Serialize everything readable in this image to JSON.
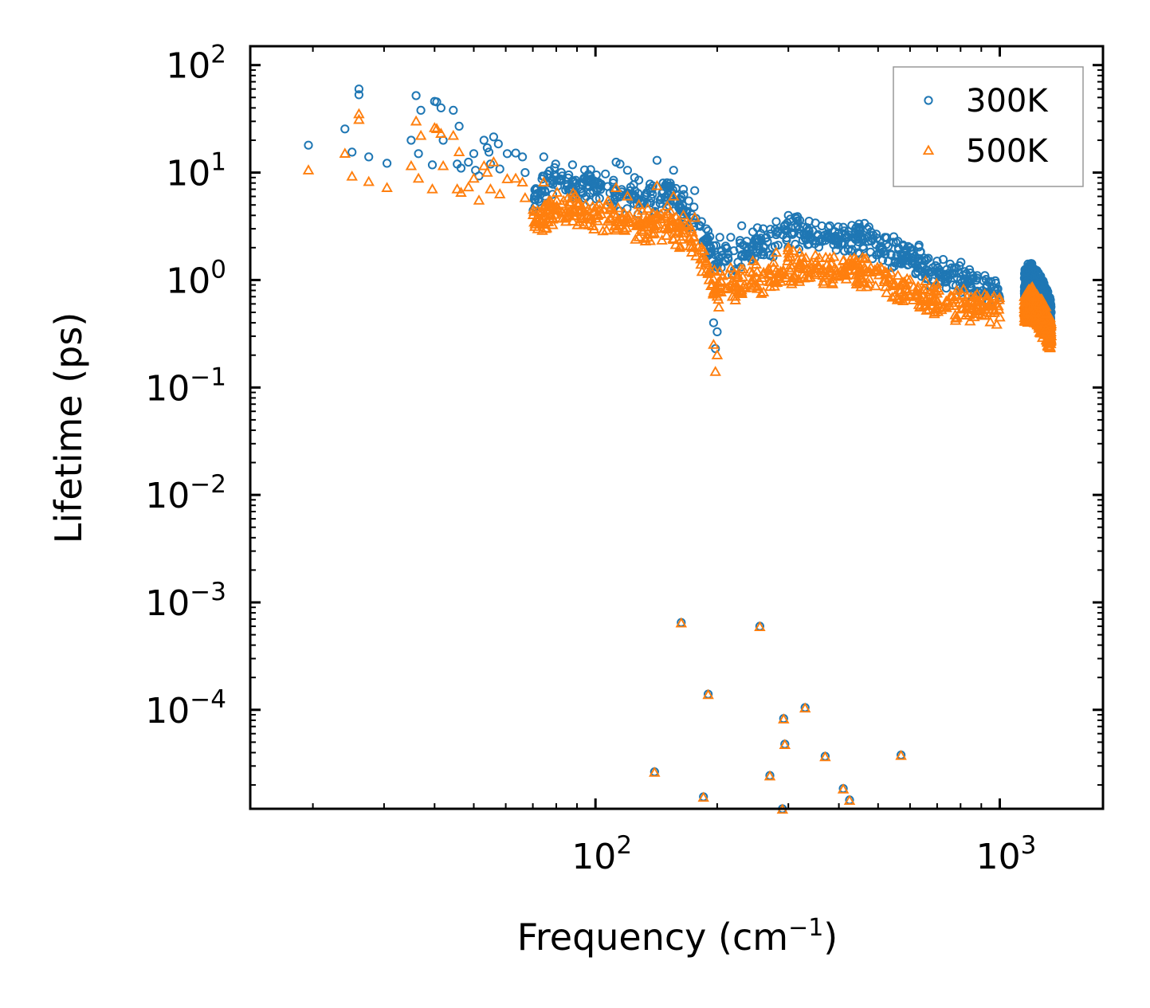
{
  "chart_data": {
    "type": "scatter",
    "title": "",
    "xlabel": "Frequency (cm",
    "xlabel_exponent": "−1",
    "xlabel_suffix": ")",
    "ylabel": "Lifetime (ps)",
    "xscale": "log",
    "yscale": "log",
    "xlim": [
      14,
      1800
    ],
    "ylim": [
      1.2e-05,
      150
    ],
    "legend_placement": "top-right",
    "x_ticks": [
      {
        "value": 100,
        "base": "10",
        "exp": "2"
      },
      {
        "value": 1000,
        "base": "10",
        "exp": "3"
      }
    ],
    "y_ticks": [
      {
        "value": 100,
        "base": "10",
        "exp": "2"
      },
      {
        "value": 10,
        "base": "10",
        "exp": "1"
      },
      {
        "value": 1,
        "base": "10",
        "exp": "0"
      },
      {
        "value": 0.1,
        "base": "10",
        "exp": "−1"
      },
      {
        "value": 0.01,
        "base": "10",
        "exp": "−2"
      },
      {
        "value": 0.001,
        "base": "10",
        "exp": "−3"
      },
      {
        "value": 0.0001,
        "base": "10",
        "exp": "−4"
      }
    ],
    "series": [
      {
        "name": "300K",
        "marker": "circle",
        "color": "#1f77b4",
        "points": [
          [
            19.5,
            18
          ],
          [
            24,
            25.5
          ],
          [
            25,
            15.5
          ],
          [
            26,
            60
          ],
          [
            26,
            53
          ],
          [
            27.5,
            14
          ],
          [
            30.5,
            12.2
          ],
          [
            35,
            20
          ],
          [
            36,
            52
          ],
          [
            36.5,
            15
          ],
          [
            37,
            38
          ],
          [
            39.5,
            11.8
          ],
          [
            40,
            46
          ],
          [
            40.5,
            45.5
          ],
          [
            41.5,
            40
          ],
          [
            42,
            20
          ],
          [
            44.5,
            38
          ],
          [
            45.5,
            12
          ],
          [
            46,
            27
          ],
          [
            46.5,
            11
          ],
          [
            48.5,
            12.5
          ],
          [
            50,
            15
          ],
          [
            50.5,
            10.5
          ],
          [
            51.5,
            9.3
          ],
          [
            53,
            20
          ],
          [
            54,
            17
          ],
          [
            54.5,
            15.5
          ],
          [
            55,
            12
          ],
          [
            56,
            21.5
          ],
          [
            57.5,
            18.5
          ],
          [
            58,
            10.8
          ],
          [
            60.5,
            15
          ],
          [
            63.5,
            15.2
          ],
          [
            66,
            14
          ],
          [
            67,
            10
          ],
          [
            74.5,
            14
          ],
          [
            112.5,
            12.5
          ],
          [
            115,
            12
          ],
          [
            120,
            10.5
          ],
          [
            125,
            9
          ],
          [
            128,
            8.5
          ],
          [
            142,
            13
          ],
          [
            147,
            8
          ],
          [
            156,
            10.5
          ],
          [
            165,
            7
          ],
          [
            176,
            6.8
          ],
          [
            183,
            3.5
          ],
          [
            188,
            3
          ],
          [
            193,
            2
          ],
          [
            196,
            0.4
          ],
          [
            198,
            0.23
          ],
          [
            200,
            0.33
          ],
          [
            203,
            2.5
          ],
          [
            216,
            2.5
          ],
          [
            230,
            3.2
          ],
          [
            245,
            2.8
          ],
          [
            260,
            3
          ],
          [
            280,
            3.5
          ],
          [
            300,
            4
          ],
          [
            320,
            3.6
          ],
          [
            350,
            3.4
          ],
          [
            380,
            3.2
          ],
          [
            410,
            3.1
          ],
          [
            440,
            3
          ],
          [
            480,
            2.8
          ],
          [
            520,
            2.5
          ],
          [
            560,
            2.3
          ],
          [
            600,
            2
          ],
          [
            650,
            1.6
          ],
          [
            700,
            1.5
          ],
          [
            760,
            1.3
          ],
          [
            820,
            1.2
          ],
          [
            880,
            1.1
          ],
          [
            930,
            0.9
          ],
          [
            1000,
            0.65
          ],
          [
            1160,
            1.2
          ],
          [
            1200,
            1.25
          ],
          [
            1250,
            1.1
          ],
          [
            1300,
            0.6
          ],
          [
            1340,
            0.5
          ]
        ]
      },
      {
        "name": "500K",
        "marker": "triangle",
        "color": "#ff7f0e",
        "points": [
          [
            19.5,
            10.5
          ],
          [
            24,
            15
          ],
          [
            25,
            9.2
          ],
          [
            26,
            35
          ],
          [
            26,
            31
          ],
          [
            27.5,
            8.2
          ],
          [
            30.5,
            7.2
          ],
          [
            35,
            11.5
          ],
          [
            36,
            30
          ],
          [
            36.5,
            8.8
          ],
          [
            37,
            22
          ],
          [
            39.5,
            7
          ],
          [
            40,
            26
          ],
          [
            40.5,
            25.5
          ],
          [
            41.5,
            23
          ],
          [
            42,
            11.5
          ],
          [
            44.5,
            22
          ],
          [
            45.5,
            7
          ],
          [
            46,
            15.5
          ],
          [
            46.5,
            6.5
          ],
          [
            48.5,
            7.3
          ],
          [
            50,
            8.8
          ],
          [
            51.5,
            5.5
          ],
          [
            53,
            11.5
          ],
          [
            54,
            10
          ],
          [
            55,
            7
          ],
          [
            56,
            12.5
          ],
          [
            58,
            6.3
          ],
          [
            60.5,
            8.7
          ],
          [
            63.5,
            8.8
          ],
          [
            66,
            8.1
          ],
          [
            67,
            5.8
          ],
          [
            74.5,
            8.1
          ],
          [
            112.5,
            7.2
          ],
          [
            120,
            6
          ],
          [
            128,
            5
          ],
          [
            142,
            7.5
          ],
          [
            156,
            6
          ],
          [
            165,
            4
          ],
          [
            176,
            3.8
          ],
          [
            183,
            2
          ],
          [
            188,
            1.5
          ],
          [
            193,
            1.2
          ],
          [
            196,
            0.25
          ],
          [
            198,
            0.14
          ],
          [
            200,
            0.2
          ],
          [
            203,
            1.2
          ],
          [
            216,
            1.3
          ],
          [
            245,
            1.5
          ],
          [
            280,
            1.8
          ],
          [
            300,
            2
          ],
          [
            320,
            1.8
          ],
          [
            350,
            1.7
          ],
          [
            380,
            1.6
          ],
          [
            410,
            1.5
          ],
          [
            440,
            1.5
          ],
          [
            480,
            1.3
          ],
          [
            520,
            1.2
          ],
          [
            560,
            1.1
          ],
          [
            600,
            1
          ],
          [
            650,
            0.8
          ],
          [
            700,
            0.75
          ],
          [
            760,
            0.7
          ],
          [
            820,
            0.6
          ],
          [
            880,
            0.55
          ],
          [
            930,
            0.5
          ],
          [
            1000,
            0.45
          ],
          [
            1160,
            0.65
          ],
          [
            1200,
            0.7
          ],
          [
            1250,
            0.6
          ],
          [
            1300,
            0.35
          ],
          [
            1340,
            0.3
          ]
        ]
      }
    ],
    "dense_bands": [
      {
        "series": "300K",
        "x_range": [
          70,
          1000
        ],
        "center": [
          [
            70,
            6.5
          ],
          [
            80,
            9
          ],
          [
            100,
            7.5
          ],
          [
            130,
            5.5
          ],
          [
            150,
            6
          ],
          [
            170,
            4.5
          ],
          [
            185,
            2.5
          ],
          [
            200,
            1.6
          ],
          [
            220,
            1.6
          ],
          [
            260,
            2.2
          ],
          [
            300,
            2.8
          ],
          [
            350,
            2.6
          ],
          [
            400,
            2.4
          ],
          [
            450,
            2.5
          ],
          [
            500,
            2.1
          ],
          [
            550,
            1.8
          ],
          [
            600,
            1.6
          ],
          [
            700,
            1.2
          ],
          [
            800,
            1
          ],
          [
            900,
            0.85
          ],
          [
            1000,
            0.7
          ]
        ],
        "spread": 0.18
      },
      {
        "series": "300K",
        "x_range": [
          1150,
          1340
        ],
        "center": [
          [
            1150,
            0.9
          ],
          [
            1200,
            1
          ],
          [
            1250,
            0.8
          ],
          [
            1300,
            0.6
          ],
          [
            1340,
            0.45
          ]
        ],
        "spread": 0.18
      },
      {
        "series": "500K",
        "x_range": [
          70,
          1000
        ],
        "center": [
          [
            70,
            3.5
          ],
          [
            80,
            4.8
          ],
          [
            100,
            4
          ],
          [
            130,
            3.2
          ],
          [
            150,
            3.3
          ],
          [
            170,
            2.5
          ],
          [
            185,
            1.4
          ],
          [
            200,
            0.8
          ],
          [
            220,
            0.85
          ],
          [
            260,
            1.05
          ],
          [
            300,
            1.3
          ],
          [
            350,
            1.25
          ],
          [
            400,
            1.15
          ],
          [
            450,
            1.2
          ],
          [
            500,
            1
          ],
          [
            550,
            0.9
          ],
          [
            600,
            0.8
          ],
          [
            700,
            0.65
          ],
          [
            800,
            0.6
          ],
          [
            900,
            0.55
          ],
          [
            1000,
            0.5
          ]
        ],
        "spread": 0.18
      },
      {
        "series": "500K",
        "x_range": [
          1150,
          1340
        ],
        "center": [
          [
            1150,
            0.55
          ],
          [
            1200,
            0.6
          ],
          [
            1250,
            0.5
          ],
          [
            1300,
            0.38
          ],
          [
            1340,
            0.3
          ]
        ],
        "spread": 0.18
      }
    ],
    "low_outliers_both_series": [
      [
        140,
        2.65e-05
      ],
      [
        163,
        0.00065
      ],
      [
        185,
        1.55e-05
      ],
      [
        190,
        0.00014
      ],
      [
        255,
        0.0006
      ],
      [
        270,
        2.45e-05
      ],
      [
        290,
        1.2e-05
      ],
      [
        292,
        8.3e-05
      ],
      [
        294,
        4.8e-05
      ],
      [
        330,
        0.000105
      ],
      [
        370,
        3.7e-05
      ],
      [
        410,
        1.85e-05
      ],
      [
        425,
        1.45e-05
      ],
      [
        570,
        3.8e-05
      ]
    ]
  }
}
